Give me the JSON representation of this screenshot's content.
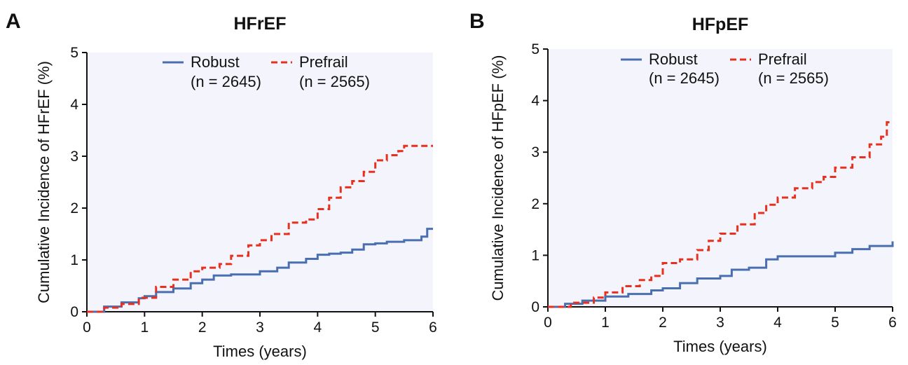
{
  "colors": {
    "robust": "#4a6fb0",
    "prefrail": "#e8301f",
    "plot_bg": "#f4f5fc",
    "axis": "#111111"
  },
  "chart_data": [
    {
      "panel_letter": "A",
      "type": "line",
      "title": "HFrEF",
      "xlabel": "Times (years)",
      "ylabel": "Cumulative Incidence of HFrEF (%)",
      "xlim": [
        0,
        6
      ],
      "ylim": [
        0,
        5
      ],
      "xticks": [
        "0",
        "1",
        "2",
        "3",
        "4",
        "5",
        "6"
      ],
      "yticks": [
        "0",
        "1",
        "2",
        "3",
        "4",
        "5"
      ],
      "legend_position": "top-center",
      "series": [
        {
          "name": "Robust",
          "sublabel": "(n = 2645)",
          "style": "solid",
          "x": [
            0,
            0.3,
            0.6,
            0.9,
            1.0,
            1.2,
            1.5,
            1.8,
            2.0,
            2.2,
            2.5,
            2.8,
            3.0,
            3.3,
            3.5,
            3.8,
            4.0,
            4.2,
            4.4,
            4.6,
            4.8,
            5.0,
            5.2,
            5.5,
            5.8,
            5.9,
            6.0
          ],
          "y": [
            0,
            0.1,
            0.18,
            0.26,
            0.3,
            0.38,
            0.45,
            0.55,
            0.62,
            0.7,
            0.72,
            0.72,
            0.78,
            0.85,
            0.95,
            1.02,
            1.1,
            1.12,
            1.14,
            1.2,
            1.3,
            1.32,
            1.35,
            1.38,
            1.45,
            1.6,
            1.6
          ]
        },
        {
          "name": "Prefrail",
          "sublabel": "(n = 2565)",
          "style": "dashed",
          "x": [
            0,
            0.3,
            0.6,
            0.9,
            1.2,
            1.5,
            1.8,
            2.0,
            2.3,
            2.5,
            2.8,
            3.0,
            3.2,
            3.5,
            3.8,
            4.0,
            4.2,
            4.4,
            4.6,
            4.8,
            5.0,
            5.2,
            5.4,
            5.5,
            6.0
          ],
          "y": [
            0,
            0.08,
            0.15,
            0.27,
            0.48,
            0.62,
            0.78,
            0.85,
            0.92,
            1.08,
            1.28,
            1.38,
            1.5,
            1.72,
            1.78,
            1.98,
            2.2,
            2.4,
            2.52,
            2.7,
            2.92,
            3.02,
            3.1,
            3.2,
            3.2
          ]
        }
      ]
    },
    {
      "panel_letter": "B",
      "type": "line",
      "title": "HFpEF",
      "xlabel": "Times (years)",
      "ylabel": "Cumulative Incidence of HFpEF (%)",
      "xlim": [
        0,
        6
      ],
      "ylim": [
        0,
        5
      ],
      "xticks": [
        "0",
        "1",
        "2",
        "3",
        "4",
        "5",
        "6"
      ],
      "yticks": [
        "0",
        "1",
        "2",
        "3",
        "4",
        "5"
      ],
      "legend_position": "top-center",
      "series": [
        {
          "name": "Robust",
          "sublabel": "(n = 2645)",
          "style": "solid",
          "x": [
            0,
            0.3,
            0.6,
            1.0,
            1.4,
            1.8,
            2.0,
            2.3,
            2.6,
            3.0,
            3.2,
            3.5,
            3.8,
            4.0,
            4.5,
            5.0,
            5.3,
            5.6,
            6.0
          ],
          "y": [
            0,
            0.06,
            0.12,
            0.2,
            0.25,
            0.32,
            0.36,
            0.46,
            0.55,
            0.6,
            0.72,
            0.76,
            0.92,
            0.98,
            0.98,
            1.05,
            1.12,
            1.18,
            1.27
          ]
        },
        {
          "name": "Prefrail",
          "sublabel": "(n = 2565)",
          "style": "dashed",
          "x": [
            0,
            0.4,
            0.8,
            1.0,
            1.3,
            1.6,
            1.8,
            2.0,
            2.3,
            2.6,
            2.8,
            3.0,
            3.3,
            3.6,
            3.8,
            4.0,
            4.3,
            4.6,
            4.8,
            5.0,
            5.3,
            5.6,
            5.8,
            5.9,
            6.0
          ],
          "y": [
            0,
            0.08,
            0.18,
            0.28,
            0.4,
            0.52,
            0.6,
            0.85,
            0.92,
            1.1,
            1.28,
            1.42,
            1.6,
            1.82,
            1.98,
            2.12,
            2.3,
            2.42,
            2.52,
            2.7,
            2.9,
            3.15,
            3.3,
            3.58,
            3.58
          ]
        }
      ]
    }
  ]
}
